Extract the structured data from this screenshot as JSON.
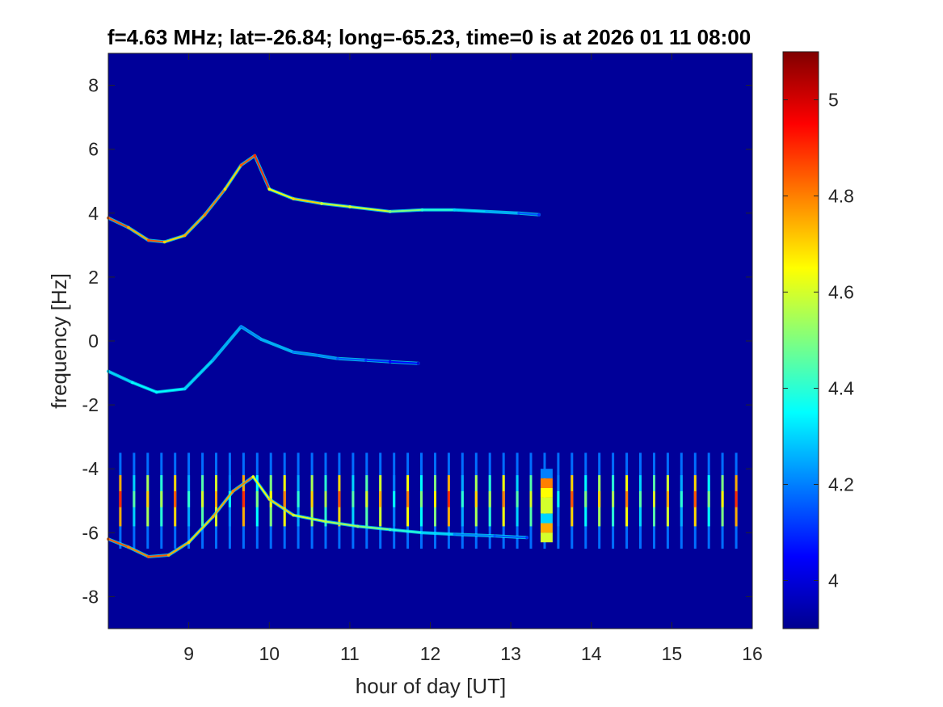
{
  "chart_data": {
    "type": "heatmap",
    "title": "f=4.63 MHz;  lat=-26.84; long=-65.23, time=0 is at 2026 01 11 08:00",
    "xlabel": "hour of day [UT]",
    "ylabel": "frequency [Hz]",
    "xlim": [
      8.0,
      16.0
    ],
    "ylim": [
      -9,
      9
    ],
    "x_ticks": [
      9,
      10,
      11,
      12,
      13,
      14,
      15,
      16
    ],
    "y_ticks": [
      8,
      6,
      4,
      2,
      0,
      -2,
      -4,
      -6,
      -8
    ],
    "colorbar": {
      "range": [
        3.9,
        5.1
      ],
      "ticks": [
        5,
        4.8,
        4.6,
        4.4,
        4.2,
        4
      ],
      "colormap": "jet"
    },
    "background_value": 3.93,
    "series": [
      {
        "kind": "doppler-trace",
        "x": [
          8.0,
          8.25,
          8.5,
          8.7,
          8.95,
          9.2,
          9.45,
          9.65,
          9.82,
          10.0,
          10.3,
          10.65,
          11.0,
          11.5,
          11.9,
          12.3,
          12.7,
          13.1,
          13.35
        ],
        "y": [
          3.85,
          3.55,
          3.15,
          3.1,
          3.3,
          3.95,
          4.75,
          5.5,
          5.8,
          4.75,
          4.45,
          4.3,
          4.2,
          4.05,
          4.1,
          4.1,
          4.05,
          4.0,
          3.95
        ],
        "level": [
          4.85,
          4.75,
          4.85,
          4.7,
          4.75,
          4.8,
          4.7,
          4.85,
          4.9,
          4.65,
          4.7,
          4.6,
          4.6,
          4.5,
          4.4,
          4.3,
          4.25,
          4.15,
          4.1
        ]
      },
      {
        "kind": "doppler-trace",
        "x": [
          8.0,
          8.3,
          8.6,
          8.95,
          9.3,
          9.65,
          9.9,
          10.3,
          10.6,
          10.85,
          11.2,
          11.5,
          11.85
        ],
        "y": [
          -0.95,
          -1.3,
          -1.6,
          -1.5,
          -0.6,
          0.45,
          0.05,
          -0.35,
          -0.45,
          -0.55,
          -0.6,
          -0.65,
          -0.7
        ],
        "level": [
          4.3,
          4.35,
          4.35,
          4.3,
          4.25,
          4.2,
          4.25,
          4.2,
          4.2,
          4.15,
          4.1,
          4.05,
          4.0
        ]
      },
      {
        "kind": "doppler-trace",
        "x": [
          8.0,
          8.25,
          8.5,
          8.75,
          9.0,
          9.3,
          9.55,
          9.8,
          10.0,
          10.3,
          10.7,
          11.1,
          11.5,
          11.9,
          12.3,
          12.8,
          13.2
        ],
        "y": [
          -6.2,
          -6.45,
          -6.75,
          -6.7,
          -6.3,
          -5.5,
          -4.7,
          -4.25,
          -4.95,
          -5.45,
          -5.65,
          -5.8,
          -5.9,
          -6.0,
          -6.05,
          -6.1,
          -6.15
        ],
        "level": [
          4.85,
          4.8,
          4.85,
          4.75,
          4.7,
          4.75,
          4.8,
          4.65,
          4.7,
          4.6,
          4.55,
          4.5,
          4.4,
          4.3,
          4.2,
          4.15,
          4.1
        ]
      }
    ],
    "bursts": {
      "x_start": 8.15,
      "x_end": 15.9,
      "spacing_hours": 0.17,
      "y_range": [
        -6.5,
        -3.5
      ],
      "peak_levels": [
        4.9,
        4.45,
        4.7,
        4.55,
        4.85,
        4.4,
        4.6,
        4.75,
        4.35,
        4.9,
        4.5,
        4.65,
        4.8,
        4.4,
        4.7,
        4.55,
        4.85,
        4.45,
        4.6,
        4.75,
        4.35,
        4.8,
        4.5,
        4.65,
        4.9,
        4.4,
        4.7,
        4.55,
        4.8,
        4.45,
        4.6,
        4.75,
        4.35,
        4.85,
        4.5,
        4.7,
        4.55,
        4.8,
        4.45,
        4.6,
        4.75,
        4.4,
        4.85,
        4.5,
        4.65,
        4.9,
        4.4
      ]
    },
    "wideband_event": {
      "x": [
        13.37,
        13.52
      ],
      "y": [
        -6.3,
        -4.0
      ],
      "bands": [
        {
          "y": [
            -4.3,
            -4.0
          ],
          "level": 4.2
        },
        {
          "y": [
            -4.6,
            -4.3
          ],
          "level": 4.8
        },
        {
          "y": [
            -4.9,
            -4.6
          ],
          "level": 4.65
        },
        {
          "y": [
            -5.4,
            -4.9
          ],
          "level": 4.6
        },
        {
          "y": [
            -5.7,
            -5.4
          ],
          "level": 4.3
        },
        {
          "y": [
            -6.0,
            -5.7
          ],
          "level": 4.75
        },
        {
          "y": [
            -6.3,
            -6.0
          ],
          "level": 4.6
        }
      ]
    }
  }
}
